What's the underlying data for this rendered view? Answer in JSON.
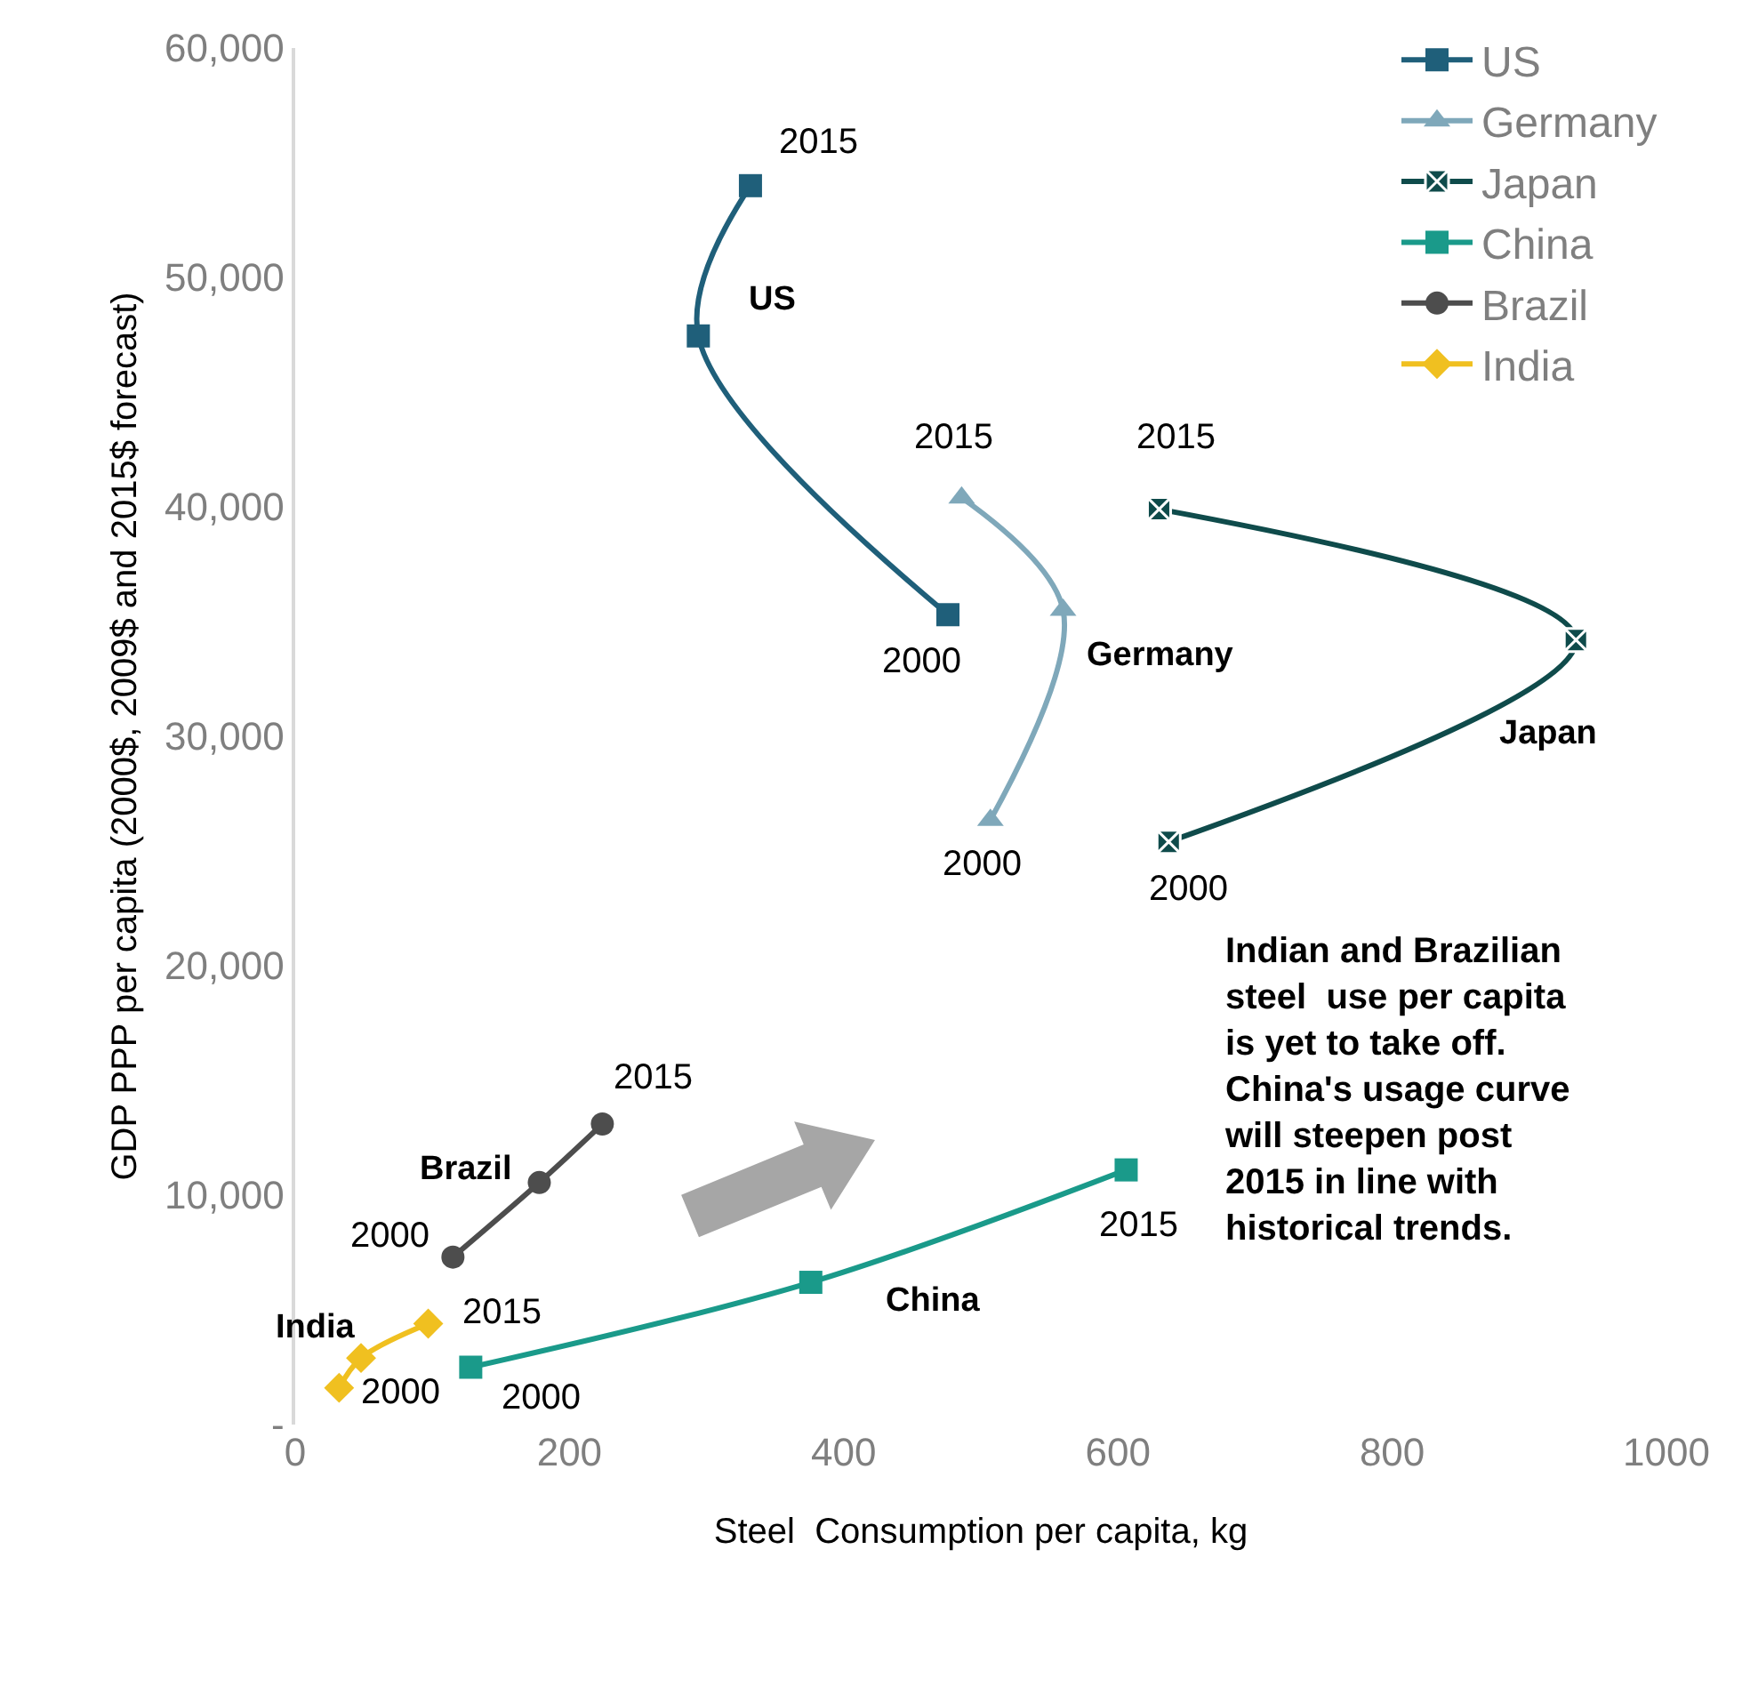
{
  "chart_data": {
    "type": "line",
    "xlabel": "Steel  Consumption per capita, kg",
    "ylabel": "GDP PPP per capita (2000$, 2009$ and 2015$ forecast)",
    "xlim": [
      0,
      1000
    ],
    "xticks": [
      0,
      200,
      400,
      600,
      800,
      {
        "value": 1000,
        "label": "1000"
      }
    ],
    "ylim": [
      0,
      60000
    ],
    "yticks": [
      {
        "value": 0,
        "label": "-"
      },
      {
        "value": 10000,
        "label": "10,000"
      },
      {
        "value": 20000,
        "label": "20,000"
      },
      {
        "value": 30000,
        "label": "30,000"
      },
      {
        "value": 40000,
        "label": "40,000"
      },
      {
        "value": 50000,
        "label": "50,000"
      },
      {
        "value": 60000,
        "label": "60,000"
      }
    ],
    "legend": "top right",
    "line_style": "solid",
    "series": [
      {
        "name": "US",
        "color": "#1f5f7a",
        "marker": "square",
        "x": [
          476,
          294,
          332
        ],
        "values": [
          35300,
          47450,
          54000
        ]
      },
      {
        "name": "Germany",
        "color": "#7fa8ba",
        "marker": "triangle",
        "x": [
          507,
          560,
          486
        ],
        "values": [
          26350,
          35500,
          40400
        ]
      },
      {
        "name": "Japan",
        "color": "#0f4b4b",
        "marker": "cross",
        "x": [
          637,
          934,
          630
        ],
        "values": [
          25400,
          34200,
          39900
        ]
      },
      {
        "name": "China",
        "color": "#1a9a8a",
        "marker": "square",
        "x": [
          128,
          376,
          606
        ],
        "values": [
          2500,
          6200,
          11100
        ]
      },
      {
        "name": "Brazil",
        "color": "#4d4d4d",
        "marker": "circle",
        "x": [
          115,
          178,
          224
        ],
        "values": [
          7300,
          10550,
          13100
        ]
      },
      {
        "name": "India",
        "color": "#f0c020",
        "marker": "diamond",
        "x": [
          32,
          48,
          97
        ],
        "values": [
          1600,
          2900,
          4400
        ]
      }
    ],
    "annotations": [
      {
        "text": "2015",
        "x": 332,
        "y": 54000
      },
      {
        "text": "US",
        "x": 294,
        "y": 47450
      },
      {
        "text": "2000",
        "x": 476,
        "y": 35300
      },
      {
        "text": "2015",
        "x": 486,
        "y": 40400
      },
      {
        "text": "Germany",
        "x": 560,
        "y": 35500
      },
      {
        "text": "2000",
        "x": 507,
        "y": 26350
      },
      {
        "text": "2015",
        "x": 630,
        "y": 39900
      },
      {
        "text": "Japan",
        "x": 934,
        "y": 34200
      },
      {
        "text": "2000",
        "x": 637,
        "y": 25400
      },
      {
        "text": "2015",
        "x": 224,
        "y": 13100
      },
      {
        "text": "Brazil",
        "x": 178,
        "y": 10550
      },
      {
        "text": "2000",
        "x": 115,
        "y": 7300
      },
      {
        "text": "India",
        "x": 48,
        "y": 2900
      },
      {
        "text": "2015",
        "x": 97,
        "y": 4400
      },
      {
        "text": "2000",
        "x": 32,
        "y": 1600
      },
      {
        "text": "2000",
        "x": 128,
        "y": 2500
      },
      {
        "text": "China",
        "x": 376,
        "y": 6200
      },
      {
        "text": "2015",
        "x": 606,
        "y": 11100
      },
      "Indian and Brazilian\nsteel  use per capita\nis yet to take off.\nChina's usage curve\nwill steepen post\n2015 in line with\nhistorical trends."
    ]
  }
}
